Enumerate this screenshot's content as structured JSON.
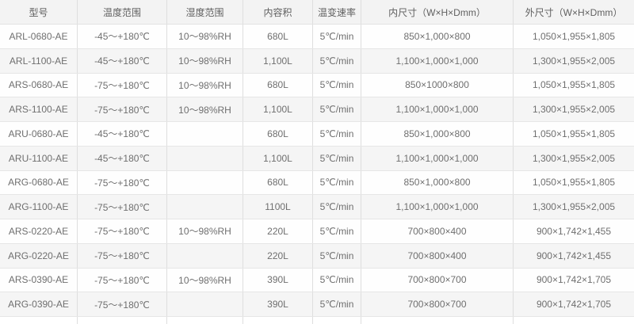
{
  "table": {
    "columns": [
      {
        "label": "型号"
      },
      {
        "label": "温度范围"
      },
      {
        "label": "湿度范围"
      },
      {
        "label": "内容积"
      },
      {
        "label": "温变速率"
      },
      {
        "label": "内尺寸（W×H×Dmm）"
      },
      {
        "label": "外尺寸（W×H×Dmm）"
      }
    ],
    "rows": [
      [
        "ARL-0680-AE",
        "-45～+180℃",
        "10～98%RH",
        "680L",
        "5℃/min",
        "850×1,000×800",
        "1,050×1,955×1,805"
      ],
      [
        "ARL-1100-AE",
        "-45～+180℃",
        "10～98%RH",
        "1,100L",
        "5℃/min",
        "1,100×1,000×1,000",
        "1,300×1,955×2,005"
      ],
      [
        "ARS-0680-AE",
        "-75～+180℃",
        "10～98%RH",
        "680L",
        "5℃/min",
        "850×1000×800",
        "1,050×1,955×1,805"
      ],
      [
        "ARS-1100-AE",
        "-75～+180℃",
        "10～98%RH",
        "1,100L",
        "5℃/min",
        "1,100×1,000×1,000",
        "1,300×1,955×2,005"
      ],
      [
        "ARU-0680-AE",
        "-45～+180℃",
        "",
        "680L",
        "5℃/min",
        "850×1,000×800",
        "1,050×1,955×1,805"
      ],
      [
        "ARU-1100-AE",
        "-45～+180℃",
        "",
        "1,100L",
        "5℃/min",
        "1,100×1,000×1,000",
        "1,300×1,955×2,005"
      ],
      [
        "ARG-0680-AE",
        "-75～+180℃",
        "",
        "680L",
        "5℃/min",
        "850×1,000×800",
        "1,050×1,955×1,805"
      ],
      [
        "ARG-1100-AE",
        "-75～+180℃",
        "",
        "1100L",
        "5℃/min",
        "1,100×1,000×1,000",
        "1,300×1,955×2,005"
      ],
      [
        "ARS-0220-AE",
        "-75～+180℃",
        "10～98%RH",
        "220L",
        "5℃/min",
        "700×800×400",
        "900×1,742×1,455"
      ],
      [
        "ARG-0220-AE",
        "-75～+180℃",
        "",
        "220L",
        "5℃/min",
        "700×800×400",
        "900×1,742×1,455"
      ],
      [
        "ARS-0390-AE",
        "-75～+180℃",
        "10～98%RH",
        "390L",
        "5℃/min",
        "700×800×700",
        "900×1,742×1,705"
      ],
      [
        "ARG-0390-AE",
        "-75～+180℃",
        "",
        "390L",
        "5℃/min",
        "700×800×700",
        "900×1,742×1,705"
      ]
    ],
    "colors": {
      "header_bg": "#f3f3f3",
      "stripe_bg": "#f5f5f5",
      "row_bg": "#fefefe",
      "border": "#dedede",
      "text": "#6f6f6f"
    }
  }
}
